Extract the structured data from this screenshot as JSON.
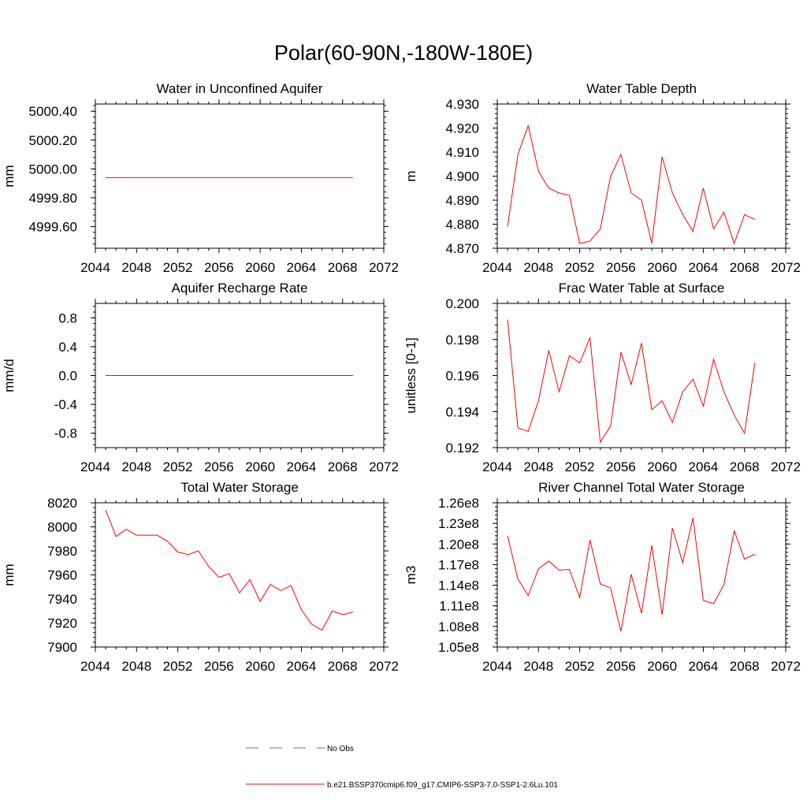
{
  "title": "Polar(60-90N,-180W-180E)",
  "chart_data": [
    {
      "type": "line",
      "title": "Water in Unconfined Aquifer",
      "ylabel": "mm",
      "xlim": [
        2044,
        2072
      ],
      "ylim": [
        4999.45,
        5000.45
      ],
      "xticks": [
        2044,
        2048,
        2052,
        2056,
        2060,
        2064,
        2068,
        2072
      ],
      "yticks": [
        4999.6,
        4999.8,
        5000.0,
        5000.2,
        5000.4
      ],
      "ytick_labels": [
        "4999.60",
        "4999.80",
        "5000.00",
        "5000.20",
        "5000.40"
      ],
      "series": [
        {
          "x": [
            2045,
            2046,
            2047,
            2048,
            2049,
            2050,
            2051,
            2052,
            2053,
            2054,
            2055,
            2056,
            2057,
            2058,
            2059,
            2060,
            2061,
            2062,
            2063,
            2064,
            2065,
            2066,
            2067,
            2068,
            2069
          ],
          "values": [
            4999.94,
            4999.94,
            4999.94,
            4999.94,
            4999.94,
            4999.94,
            4999.94,
            4999.94,
            4999.94,
            4999.94,
            4999.94,
            4999.94,
            4999.94,
            4999.94,
            4999.94,
            4999.94,
            4999.94,
            4999.94,
            4999.94,
            4999.94,
            4999.94,
            4999.94,
            4999.94,
            4999.94,
            4999.94
          ]
        }
      ]
    },
    {
      "type": "line",
      "title": "Water Table Depth",
      "ylabel": "m",
      "xlim": [
        2044,
        2072
      ],
      "ylim": [
        4.87,
        4.93
      ],
      "xticks": [
        2044,
        2048,
        2052,
        2056,
        2060,
        2064,
        2068,
        2072
      ],
      "yticks": [
        4.87,
        4.88,
        4.89,
        4.9,
        4.91,
        4.92,
        4.93
      ],
      "ytick_labels": [
        "4.870",
        "4.880",
        "4.890",
        "4.900",
        "4.910",
        "4.920",
        "4.930"
      ],
      "series": [
        {
          "x": [
            2045,
            2046,
            2047,
            2048,
            2049,
            2050,
            2051,
            2052,
            2053,
            2054,
            2055,
            2056,
            2057,
            2058,
            2059,
            2060,
            2061,
            2062,
            2063,
            2064,
            2065,
            2066,
            2067,
            2068,
            2069
          ],
          "values": [
            4.879,
            4.909,
            4.921,
            4.902,
            4.895,
            4.893,
            4.892,
            4.872,
            4.873,
            4.878,
            4.9,
            4.909,
            4.893,
            4.89,
            4.872,
            4.908,
            4.893,
            4.884,
            4.877,
            4.895,
            4.878,
            4.885,
            4.872,
            4.884,
            4.882
          ]
        }
      ]
    },
    {
      "type": "line",
      "title": "Aquifer Recharge Rate",
      "ylabel": "mm/d",
      "xlim": [
        2044,
        2072
      ],
      "ylim": [
        -1.0,
        1.0
      ],
      "xticks": [
        2044,
        2048,
        2052,
        2056,
        2060,
        2064,
        2068,
        2072
      ],
      "yticks": [
        -0.8,
        -0.4,
        0.0,
        0.4,
        0.8
      ],
      "ytick_labels": [
        "-0.8",
        "-0.4",
        "0.0",
        "0.4",
        "0.8"
      ],
      "series": [
        {
          "x": [
            2045,
            2046,
            2047,
            2048,
            2049,
            2050,
            2051,
            2052,
            2053,
            2054,
            2055,
            2056,
            2057,
            2058,
            2059,
            2060,
            2061,
            2062,
            2063,
            2064,
            2065,
            2066,
            2067,
            2068,
            2069
          ],
          "values": [
            0,
            0,
            0,
            0,
            0,
            0,
            0,
            0,
            0,
            0,
            0,
            0,
            0,
            0,
            0,
            0,
            0,
            0,
            0,
            0,
            0,
            0,
            0,
            0,
            0
          ]
        }
      ]
    },
    {
      "type": "line",
      "title": "Frac Water Table at Surface",
      "ylabel": "unitless [0-1]",
      "xlim": [
        2044,
        2072
      ],
      "ylim": [
        0.192,
        0.2
      ],
      "xticks": [
        2044,
        2048,
        2052,
        2056,
        2060,
        2064,
        2068,
        2072
      ],
      "yticks": [
        0.192,
        0.194,
        0.196,
        0.198,
        0.2
      ],
      "ytick_labels": [
        "0.192",
        "0.194",
        "0.196",
        "0.198",
        "0.200"
      ],
      "series": [
        {
          "x": [
            2045,
            2046,
            2047,
            2048,
            2049,
            2050,
            2051,
            2052,
            2053,
            2054,
            2055,
            2056,
            2057,
            2058,
            2059,
            2060,
            2061,
            2062,
            2063,
            2064,
            2065,
            2066,
            2067,
            2068,
            2069
          ],
          "values": [
            0.1991,
            0.1931,
            0.1929,
            0.1946,
            0.1974,
            0.1951,
            0.1971,
            0.1967,
            0.1981,
            0.1923,
            0.1932,
            0.1973,
            0.1955,
            0.1978,
            0.1941,
            0.1946,
            0.1934,
            0.1951,
            0.1958,
            0.1943,
            0.1969,
            0.1951,
            0.1938,
            0.1928,
            0.1967
          ]
        }
      ]
    },
    {
      "type": "line",
      "title": "Total Water Storage",
      "ylabel": "mm",
      "xlim": [
        2044,
        2072
      ],
      "ylim": [
        7900,
        8020
      ],
      "xticks": [
        2044,
        2048,
        2052,
        2056,
        2060,
        2064,
        2068,
        2072
      ],
      "yticks": [
        7900,
        7920,
        7940,
        7960,
        7980,
        8000,
        8020
      ],
      "ytick_labels": [
        "7900",
        "7920",
        "7940",
        "7960",
        "7980",
        "8000",
        "8020"
      ],
      "series": [
        {
          "x": [
            2045,
            2046,
            2047,
            2048,
            2049,
            2050,
            2051,
            2052,
            2053,
            2054,
            2055,
            2056,
            2057,
            2058,
            2059,
            2060,
            2061,
            2062,
            2063,
            2064,
            2065,
            2066,
            2067,
            2068,
            2069
          ],
          "values": [
            8014,
            7992,
            7998,
            7993,
            7993,
            7993,
            7988,
            7979,
            7977,
            7980,
            7967,
            7958,
            7961,
            7945,
            7956,
            7938,
            7952,
            7947,
            7951,
            7931,
            7919,
            7914,
            7930,
            7927,
            7929
          ]
        }
      ]
    },
    {
      "type": "line",
      "title": "River Channel Total Water Storage",
      "ylabel": "m3",
      "xlim": [
        2044,
        2072
      ],
      "ylim": [
        105000000,
        126000000
      ],
      "xticks": [
        2044,
        2048,
        2052,
        2056,
        2060,
        2064,
        2068,
        2072
      ],
      "yticks": [
        105000000,
        108000000,
        111000000,
        114000000,
        117000000,
        120000000,
        123000000,
        126000000
      ],
      "ytick_labels": [
        "1.05e8",
        "1.08e8",
        "1.11e8",
        "1.14e8",
        "1.17e8",
        "1.20e8",
        "1.23e8",
        "1.26e8"
      ],
      "series": [
        {
          "x": [
            2045,
            2046,
            2047,
            2048,
            2049,
            2050,
            2051,
            2052,
            2053,
            2054,
            2055,
            2056,
            2057,
            2058,
            2059,
            2060,
            2061,
            2062,
            2063,
            2064,
            2065,
            2066,
            2067,
            2068,
            2069
          ],
          "values": [
            121200000,
            114900000,
            112500000,
            116400000,
            117500000,
            116200000,
            116300000,
            112200000,
            120600000,
            114200000,
            113600000,
            107300000,
            115600000,
            109900000,
            119800000,
            109700000,
            122300000,
            117300000,
            123800000,
            111800000,
            111300000,
            114100000,
            121900000,
            117800000,
            118500000
          ]
        }
      ]
    }
  ],
  "legend": [
    {
      "label": "No Obs",
      "color": "#6a6ab4",
      "style": "dashed"
    },
    {
      "label": "b.e21.BSSP370cmip6.f09_g17.CMIP6-SSP3-7.0-SSP1-2.6Lu.101",
      "color": "#ff0000",
      "style": "solid"
    }
  ],
  "colors": {
    "series": "#ff0000",
    "axis": "#000000"
  }
}
